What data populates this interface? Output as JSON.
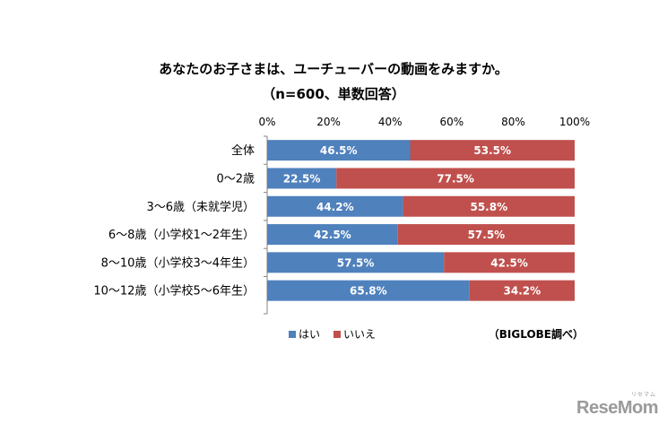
{
  "chart_data": {
    "type": "bar",
    "orientation": "horizontal",
    "stacked": true,
    "title": "あなたのお子さまは、ユーチューバーの動画をみますか。",
    "subtitle": "（n=600、単数回答）",
    "categories": [
      "全体",
      "0～2歳",
      "3～6歳（未就学児）",
      "6～8歳（小学校1～2年生）",
      "8～10歳（小学校3～4年生）",
      "10～12歳（小学校5～6年生）"
    ],
    "series": [
      {
        "name": "はい",
        "values": [
          46.5,
          22.5,
          44.2,
          42.5,
          57.5,
          65.8
        ],
        "color": "#4f81bd"
      },
      {
        "name": "いいえ",
        "values": [
          53.5,
          77.5,
          55.8,
          57.5,
          42.5,
          34.2
        ],
        "color": "#c0504d"
      }
    ],
    "data_label_suffix": "%",
    "x_ticks": [
      "0%",
      "20%",
      "40%",
      "60%",
      "80%",
      "100%"
    ],
    "xlim": [
      0,
      100
    ],
    "tick_position": "top",
    "grid": false,
    "legend_position": "bottom",
    "source": "（BIGLOBE調べ）"
  },
  "brand": {
    "logo_text": "ReseMom",
    "logo_sub": "リセマム"
  }
}
